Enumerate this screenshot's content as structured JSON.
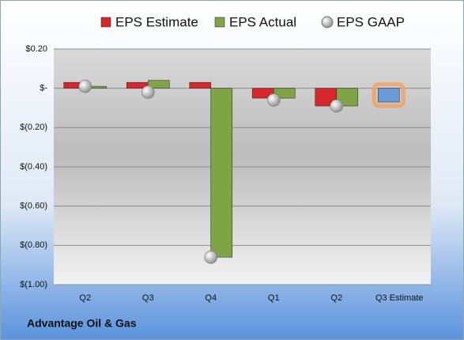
{
  "chart_data": {
    "type": "bar",
    "title": "Advantage Oil & Gas",
    "categories": [
      "Q2",
      "Q3",
      "Q4",
      "Q1",
      "Q2",
      "Q3 Estimate"
    ],
    "series": [
      {
        "name": "EPS Estimate",
        "type": "bar",
        "color": "#d8262b",
        "colors": [
          "#d8262b",
          "#d8262b",
          "#d8262b",
          "#d8262b",
          "#d8262b",
          "#6a9bd8"
        ],
        "values": [
          0.03,
          0.03,
          0.03,
          -0.05,
          -0.09,
          -0.07
        ]
      },
      {
        "name": "EPS Actual",
        "type": "bar",
        "color": "#7ea445",
        "values": [
          0.01,
          0.04,
          -0.86,
          -0.05,
          -0.09,
          null
        ]
      },
      {
        "name": "EPS GAAP",
        "type": "scatter",
        "color": "#a8a8a8",
        "values": [
          0.01,
          -0.02,
          -0.86,
          -0.06,
          -0.09,
          null
        ]
      }
    ],
    "ylim": [
      -1.0,
      0.2
    ],
    "yticks": [
      {
        "value": 0.2,
        "label": "$0.20"
      },
      {
        "value": 0,
        "label": "$-"
      },
      {
        "value": -0.2,
        "label": "$(0.20)"
      },
      {
        "value": -0.4,
        "label": "$(0.40)"
      },
      {
        "value": -0.6,
        "label": "$(0.60)"
      },
      {
        "value": -0.8,
        "label": "$(0.80)"
      },
      {
        "value": -1.0,
        "label": "$(1.00)"
      }
    ],
    "grid": true
  }
}
